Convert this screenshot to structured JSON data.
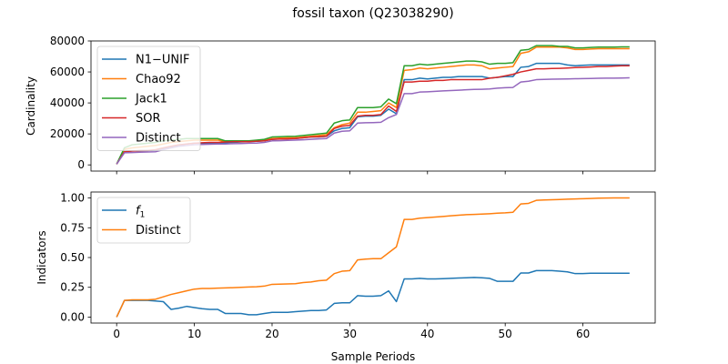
{
  "figure": {
    "title": "fossil taxon (Q23038290)"
  },
  "chart_data": [
    {
      "type": "line",
      "title": "",
      "xlabel": "",
      "ylabel": "Cardinality",
      "xlim": [
        -3.3,
        69.3
      ],
      "ylim": [
        -4000,
        80000
      ],
      "xticks": [
        0,
        10,
        20,
        30,
        40,
        50,
        60
      ],
      "xtick_labels": [
        "",
        "",
        "",
        "",
        "",
        "",
        ""
      ],
      "yticks": [
        0,
        20000,
        40000,
        60000,
        80000
      ],
      "ytick_labels": [
        "0",
        "20000",
        "40000",
        "60000",
        "80000"
      ],
      "grid": false,
      "legend_position": "upper-left",
      "x": [
        0,
        1,
        2,
        3,
        4,
        5,
        6,
        7,
        8,
        9,
        10,
        11,
        12,
        13,
        14,
        15,
        16,
        17,
        18,
        19,
        20,
        21,
        22,
        23,
        24,
        25,
        26,
        27,
        28,
        29,
        30,
        31,
        32,
        33,
        34,
        35,
        36,
        37,
        38,
        39,
        40,
        41,
        42,
        43,
        44,
        45,
        46,
        47,
        48,
        49,
        50,
        51,
        52,
        53,
        54,
        55,
        56,
        57,
        58,
        59,
        60,
        61,
        62,
        63,
        64,
        65,
        66
      ],
      "series": [
        {
          "name": "N1−UNIF",
          "color": "#1f77b4",
          "values": [
            500,
            8500,
            9000,
            9200,
            9300,
            9500,
            10500,
            11500,
            12500,
            13500,
            14000,
            14000,
            14000,
            14000,
            14300,
            14500,
            14800,
            15000,
            15200,
            15500,
            16500,
            16800,
            17000,
            17000,
            17500,
            18000,
            18000,
            18500,
            22000,
            23500,
            24000,
            31000,
            31500,
            31500,
            32000,
            36000,
            33000,
            55000,
            55000,
            56000,
            55500,
            56000,
            56500,
            56500,
            57000,
            57000,
            57000,
            57000,
            56000,
            56500,
            57000,
            57000,
            63000,
            63500,
            65500,
            65500,
            65500,
            65500,
            64500,
            64000,
            64300,
            64500,
            64500,
            64500,
            64500,
            64500,
            64500
          ]
        },
        {
          "name": "Chao92",
          "color": "#ff7f0e",
          "values": [
            500,
            10000,
            11000,
            11500,
            12000,
            12500,
            13500,
            14500,
            15000,
            15500,
            16000,
            16000,
            16000,
            16000,
            15000,
            15000,
            15000,
            15000,
            15500,
            16000,
            17000,
            17300,
            17500,
            17500,
            18000,
            18500,
            19000,
            19500,
            24000,
            26000,
            27000,
            34000,
            34000,
            34500,
            35000,
            40000,
            37000,
            61000,
            61500,
            62500,
            62000,
            62500,
            63000,
            63500,
            64000,
            64500,
            64500,
            64000,
            62000,
            62500,
            63000,
            63500,
            72000,
            73000,
            76000,
            76000,
            76000,
            76000,
            75500,
            74500,
            74500,
            74800,
            75000,
            75000,
            75000,
            75000,
            75000
          ]
        },
        {
          "name": "Jack1",
          "color": "#2ca02c",
          "values": [
            500,
            11000,
            13000,
            13500,
            14000,
            14500,
            15500,
            16000,
            16500,
            17000,
            17000,
            17000,
            17000,
            17000,
            15500,
            15500,
            15500,
            15500,
            16000,
            16500,
            18000,
            18200,
            18400,
            18500,
            19000,
            19500,
            20000,
            20500,
            27000,
            28500,
            29000,
            37000,
            37000,
            37000,
            37500,
            42500,
            39500,
            64000,
            64000,
            65000,
            64500,
            65000,
            65500,
            66000,
            66500,
            67000,
            67000,
            66500,
            65000,
            65500,
            65500,
            66000,
            74000,
            74500,
            77000,
            77000,
            77000,
            76500,
            76500,
            75500,
            75500,
            75800,
            76000,
            76000,
            76000,
            76200,
            76200
          ]
        },
        {
          "name": "SOR",
          "color": "#d62728",
          "values": [
            500,
            8500,
            9000,
            9200,
            9300,
            9800,
            11000,
            12000,
            13000,
            13500,
            14000,
            14300,
            14500,
            14500,
            14800,
            15000,
            15000,
            15000,
            15200,
            15500,
            16500,
            16700,
            16800,
            17000,
            17500,
            18000,
            18200,
            18500,
            23500,
            25000,
            25500,
            31500,
            32000,
            32000,
            32500,
            38000,
            34500,
            53500,
            53500,
            54000,
            54000,
            54500,
            54500,
            55000,
            55000,
            55000,
            55000,
            55000,
            56000,
            56500,
            57500,
            58500,
            60000,
            61000,
            62000,
            62000,
            62200,
            62300,
            62500,
            62800,
            63000,
            63200,
            63500,
            63500,
            63800,
            64000,
            64000
          ]
        },
        {
          "name": "Distinct",
          "color": "#9467bd",
          "values": [
            500,
            7800,
            8000,
            8200,
            8300,
            8500,
            9800,
            11000,
            12000,
            12500,
            13000,
            13200,
            13300,
            13500,
            13500,
            13700,
            13800,
            14000,
            14100,
            14500,
            15500,
            15600,
            15800,
            16000,
            16200,
            16500,
            16800,
            17000,
            20500,
            21700,
            22000,
            27000,
            27200,
            27300,
            27500,
            30500,
            32500,
            46000,
            46000,
            47000,
            47200,
            47500,
            47800,
            48000,
            48200,
            48500,
            48700,
            48800,
            49000,
            49500,
            49800,
            50000,
            53500,
            54000,
            55000,
            55200,
            55300,
            55400,
            55500,
            55600,
            55700,
            55800,
            55900,
            56000,
            56000,
            56100,
            56200
          ]
        }
      ]
    },
    {
      "type": "line",
      "title": "",
      "xlabel": "Sample Periods",
      "ylabel": "Indicators",
      "xlim": [
        -3.3,
        69.3
      ],
      "ylim": [
        -0.05,
        1.05
      ],
      "xticks": [
        0,
        10,
        20,
        30,
        40,
        50,
        60
      ],
      "xtick_labels": [
        "0",
        "10",
        "20",
        "30",
        "40",
        "50",
        "60"
      ],
      "yticks": [
        0,
        0.25,
        0.5,
        0.75,
        1.0
      ],
      "ytick_labels": [
        "0.00",
        "0.25",
        "0.50",
        "0.75",
        "1.00"
      ],
      "grid": false,
      "legend_position": "upper-left",
      "x": [
        0,
        1,
        2,
        3,
        4,
        5,
        6,
        7,
        8,
        9,
        10,
        11,
        12,
        13,
        14,
        15,
        16,
        17,
        18,
        19,
        20,
        21,
        22,
        23,
        24,
        25,
        26,
        27,
        28,
        29,
        30,
        31,
        32,
        33,
        34,
        35,
        36,
        37,
        38,
        39,
        40,
        41,
        42,
        43,
        44,
        45,
        46,
        47,
        48,
        49,
        50,
        51,
        52,
        53,
        54,
        55,
        56,
        57,
        58,
        59,
        60,
        61,
        62,
        63,
        64,
        65,
        66
      ],
      "series": [
        {
          "name": "f",
          "name_subscript": "1",
          "color": "#1f77b4",
          "values": [
            0.0,
            0.14,
            0.14,
            0.14,
            0.14,
            0.135,
            0.13,
            0.065,
            0.075,
            0.09,
            0.08,
            0.07,
            0.065,
            0.065,
            0.03,
            0.03,
            0.03,
            0.02,
            0.02,
            0.03,
            0.04,
            0.04,
            0.04,
            0.045,
            0.05,
            0.055,
            0.055,
            0.06,
            0.115,
            0.12,
            0.12,
            0.18,
            0.175,
            0.175,
            0.18,
            0.22,
            0.13,
            0.32,
            0.32,
            0.325,
            0.32,
            0.32,
            0.322,
            0.325,
            0.328,
            0.33,
            0.333,
            0.33,
            0.325,
            0.3,
            0.3,
            0.3,
            0.37,
            0.37,
            0.39,
            0.39,
            0.39,
            0.385,
            0.38,
            0.365,
            0.365,
            0.368,
            0.368,
            0.368,
            0.368,
            0.368,
            0.368
          ]
        },
        {
          "name": "Distinct",
          "color": "#ff7f0e",
          "values": [
            0.0,
            0.14,
            0.145,
            0.145,
            0.145,
            0.15,
            0.17,
            0.19,
            0.205,
            0.22,
            0.235,
            0.24,
            0.24,
            0.243,
            0.245,
            0.247,
            0.25,
            0.253,
            0.255,
            0.26,
            0.275,
            0.277,
            0.278,
            0.28,
            0.29,
            0.295,
            0.305,
            0.31,
            0.365,
            0.385,
            0.39,
            0.48,
            0.487,
            0.49,
            0.49,
            0.54,
            0.59,
            0.82,
            0.82,
            0.83,
            0.835,
            0.84,
            0.845,
            0.85,
            0.855,
            0.86,
            0.862,
            0.865,
            0.868,
            0.872,
            0.875,
            0.88,
            0.95,
            0.955,
            0.98,
            0.983,
            0.985,
            0.987,
            0.99,
            0.992,
            0.994,
            0.996,
            0.998,
            0.999,
            1.0,
            1.0,
            1.0
          ]
        }
      ]
    }
  ]
}
